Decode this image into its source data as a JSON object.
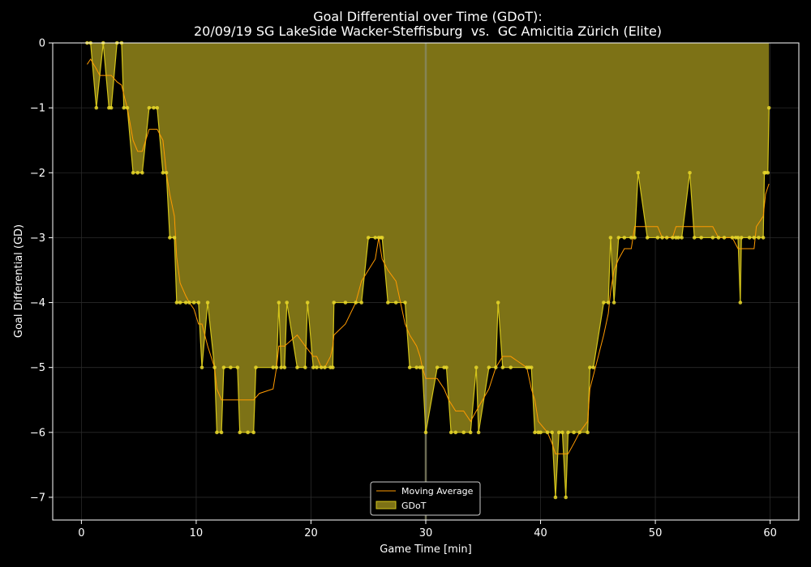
{
  "chart_data": {
    "type": "area",
    "title_line1": "Goal Differential over Time (GDoT):",
    "title_line2": "20/09/19 SG LakeSide Wacker-Steffisburg  vs.  GC Amicitia Zürich (Elite)",
    "xlabel": "Game Time [min]",
    "ylabel": "Goal Differential (GD)",
    "xlim": [
      -2.5,
      62.5
    ],
    "ylim": [
      -7.35,
      0
    ],
    "xticks": [
      0,
      10,
      20,
      30,
      40,
      50,
      60
    ],
    "yticks": [
      0,
      -1,
      -2,
      -3,
      -4,
      -5,
      -6,
      -7
    ],
    "xtick_labels": [
      "0",
      "10",
      "20",
      "30",
      "40",
      "50",
      "60"
    ],
    "ytick_labels": [
      "0",
      "−1",
      "−2",
      "−3",
      "−4",
      "−5",
      "−6",
      "−7"
    ],
    "grid": true,
    "vertical_marker_x": 30,
    "legend": {
      "position": "lower center",
      "entries": [
        "Moving Average",
        "GDoT"
      ]
    },
    "colors": {
      "background": "#000000",
      "area_fill": "#7d7216",
      "gdot_line": "#d4c41a",
      "marker": "#e6d62a",
      "moving_average": "#ff9a00",
      "marker_line": "#8a8a6a"
    },
    "gdot_series": {
      "name": "GDoT",
      "points": [
        [
          0.5,
          0
        ],
        [
          0.8,
          0
        ],
        [
          1.3,
          -1
        ],
        [
          1.9,
          0
        ],
        [
          2.4,
          -1
        ],
        [
          2.6,
          -1
        ],
        [
          3.1,
          0
        ],
        [
          3.5,
          0
        ],
        [
          3.7,
          -1
        ],
        [
          4.0,
          -1
        ],
        [
          4.5,
          -2
        ],
        [
          4.9,
          -2
        ],
        [
          5.3,
          -2
        ],
        [
          5.9,
          -1
        ],
        [
          6.3,
          -1
        ],
        [
          6.6,
          -1
        ],
        [
          7.1,
          -2
        ],
        [
          7.4,
          -2
        ],
        [
          7.7,
          -3
        ],
        [
          8.1,
          -3
        ],
        [
          8.3,
          -4
        ],
        [
          8.6,
          -4
        ],
        [
          9.1,
          -4
        ],
        [
          9.4,
          -4
        ],
        [
          9.8,
          -4
        ],
        [
          10.2,
          -4
        ],
        [
          10.5,
          -5
        ],
        [
          11.0,
          -4
        ],
        [
          11.6,
          -5
        ],
        [
          11.8,
          -6
        ],
        [
          12.2,
          -6
        ],
        [
          12.4,
          -5
        ],
        [
          13.0,
          -5
        ],
        [
          13.6,
          -5
        ],
        [
          13.8,
          -6
        ],
        [
          14.5,
          -6
        ],
        [
          15.0,
          -6
        ],
        [
          15.2,
          -5
        ],
        [
          16.7,
          -5
        ],
        [
          17.0,
          -5
        ],
        [
          17.2,
          -4
        ],
        [
          17.4,
          -5
        ],
        [
          17.7,
          -5
        ],
        [
          17.9,
          -4
        ],
        [
          18.8,
          -5
        ],
        [
          19.5,
          -5
        ],
        [
          19.7,
          -4
        ],
        [
          20.2,
          -5
        ],
        [
          20.5,
          -5
        ],
        [
          20.9,
          -5
        ],
        [
          21.2,
          -5
        ],
        [
          21.7,
          -5
        ],
        [
          21.9,
          -5
        ],
        [
          22.0,
          -4
        ],
        [
          23.0,
          -4
        ],
        [
          23.9,
          -4
        ],
        [
          24.4,
          -4
        ],
        [
          25.0,
          -3
        ],
        [
          25.6,
          -3
        ],
        [
          25.9,
          -3
        ],
        [
          26.1,
          -3
        ],
        [
          26.2,
          -3
        ],
        [
          26.7,
          -4
        ],
        [
          27.4,
          -4
        ],
        [
          28.2,
          -4
        ],
        [
          28.6,
          -5
        ],
        [
          29.2,
          -5
        ],
        [
          29.5,
          -5
        ],
        [
          29.7,
          -5
        ],
        [
          30.0,
          -6
        ],
        [
          31.0,
          -5
        ],
        [
          31.6,
          -5
        ],
        [
          31.8,
          -5
        ],
        [
          32.2,
          -6
        ],
        [
          32.6,
          -6
        ],
        [
          33.3,
          -6
        ],
        [
          33.9,
          -6
        ],
        [
          34.4,
          -5
        ],
        [
          34.6,
          -6
        ],
        [
          35.5,
          -5
        ],
        [
          36.1,
          -5
        ],
        [
          36.3,
          -4
        ],
        [
          36.7,
          -5
        ],
        [
          37.4,
          -5
        ],
        [
          38.8,
          -5
        ],
        [
          39.0,
          -5
        ],
        [
          39.2,
          -5
        ],
        [
          39.5,
          -6
        ],
        [
          39.8,
          -6
        ],
        [
          40.0,
          -6
        ],
        [
          40.6,
          -6
        ],
        [
          41.0,
          -6
        ],
        [
          41.3,
          -7
        ],
        [
          41.6,
          -6
        ],
        [
          41.9,
          -6
        ],
        [
          42.2,
          -7
        ],
        [
          42.4,
          -6
        ],
        [
          42.9,
          -6
        ],
        [
          43.4,
          -6
        ],
        [
          44.1,
          -6
        ],
        [
          44.3,
          -5
        ],
        [
          44.6,
          -5
        ],
        [
          45.5,
          -4
        ],
        [
          45.9,
          -4
        ],
        [
          46.1,
          -3
        ],
        [
          46.4,
          -4
        ],
        [
          46.8,
          -3
        ],
        [
          47.3,
          -3
        ],
        [
          47.9,
          -3
        ],
        [
          48.2,
          -3
        ],
        [
          48.5,
          -2
        ],
        [
          49.3,
          -3
        ],
        [
          50.2,
          -3
        ],
        [
          50.6,
          -3
        ],
        [
          51.0,
          -3
        ],
        [
          51.5,
          -3
        ],
        [
          51.8,
          -3
        ],
        [
          52.0,
          -3
        ],
        [
          52.3,
          -3
        ],
        [
          53.0,
          -2
        ],
        [
          53.4,
          -3
        ],
        [
          54.0,
          -3
        ],
        [
          55.0,
          -3
        ],
        [
          55.5,
          -3
        ],
        [
          56.0,
          -3
        ],
        [
          56.7,
          -3
        ],
        [
          57.0,
          -3
        ],
        [
          57.2,
          -3
        ],
        [
          57.4,
          -4
        ],
        [
          57.5,
          -3
        ],
        [
          58.2,
          -3
        ],
        [
          58.6,
          -3
        ],
        [
          59.0,
          -3
        ],
        [
          59.4,
          -3
        ],
        [
          59.5,
          -2
        ],
        [
          59.6,
          -2
        ],
        [
          59.8,
          -2
        ],
        [
          59.9,
          -1
        ]
      ]
    },
    "moving_average_series": {
      "name": "Moving Average",
      "points": [
        [
          0.5,
          -0.33
        ],
        [
          0.8,
          -0.25
        ],
        [
          1.3,
          -0.4
        ],
        [
          1.6,
          -0.5
        ],
        [
          2.4,
          -0.5
        ],
        [
          2.6,
          -0.5
        ],
        [
          3.1,
          -0.6
        ],
        [
          3.5,
          -0.65
        ],
        [
          3.7,
          -0.8
        ],
        [
          4.0,
          -1.0
        ],
        [
          4.5,
          -1.5
        ],
        [
          4.9,
          -1.67
        ],
        [
          5.3,
          -1.67
        ],
        [
          5.9,
          -1.33
        ],
        [
          6.3,
          -1.33
        ],
        [
          6.6,
          -1.33
        ],
        [
          7.1,
          -1.5
        ],
        [
          7.4,
          -2.0
        ],
        [
          7.7,
          -2.33
        ],
        [
          8.1,
          -2.67
        ],
        [
          8.3,
          -3.3
        ],
        [
          8.6,
          -3.7
        ],
        [
          9.1,
          -3.9
        ],
        [
          9.4,
          -4.0
        ],
        [
          9.8,
          -4.1
        ],
        [
          10.2,
          -4.33
        ],
        [
          10.5,
          -4.33
        ],
        [
          11.0,
          -4.67
        ],
        [
          11.6,
          -5.0
        ],
        [
          11.8,
          -5.33
        ],
        [
          12.2,
          -5.5
        ],
        [
          13.0,
          -5.5
        ],
        [
          13.6,
          -5.5
        ],
        [
          14.5,
          -5.5
        ],
        [
          15.0,
          -5.5
        ],
        [
          15.5,
          -5.4
        ],
        [
          16.7,
          -5.33
        ],
        [
          17.0,
          -5.0
        ],
        [
          17.2,
          -4.67
        ],
        [
          17.4,
          -4.67
        ],
        [
          17.7,
          -4.67
        ],
        [
          18.8,
          -4.5
        ],
        [
          19.5,
          -4.67
        ],
        [
          20.2,
          -4.83
        ],
        [
          20.5,
          -4.83
        ],
        [
          20.9,
          -5.0
        ],
        [
          21.2,
          -5.0
        ],
        [
          21.7,
          -4.83
        ],
        [
          21.9,
          -4.67
        ],
        [
          22.0,
          -4.5
        ],
        [
          23.0,
          -4.33
        ],
        [
          23.9,
          -4.0
        ],
        [
          24.4,
          -3.67
        ],
        [
          25.0,
          -3.5
        ],
        [
          25.6,
          -3.33
        ],
        [
          25.9,
          -3.0
        ],
        [
          26.2,
          -3.33
        ],
        [
          26.7,
          -3.5
        ],
        [
          27.4,
          -3.67
        ],
        [
          28.2,
          -4.33
        ],
        [
          28.6,
          -4.5
        ],
        [
          29.2,
          -4.67
        ],
        [
          29.5,
          -4.83
        ],
        [
          29.7,
          -5.0
        ],
        [
          30.0,
          -5.17
        ],
        [
          31.0,
          -5.17
        ],
        [
          31.6,
          -5.33
        ],
        [
          32.0,
          -5.5
        ],
        [
          32.6,
          -5.67
        ],
        [
          33.3,
          -5.67
        ],
        [
          33.9,
          -5.83
        ],
        [
          34.4,
          -5.67
        ],
        [
          35.5,
          -5.33
        ],
        [
          36.1,
          -5.0
        ],
        [
          36.7,
          -4.83
        ],
        [
          37.4,
          -4.83
        ],
        [
          38.8,
          -5.0
        ],
        [
          39.2,
          -5.33
        ],
        [
          39.5,
          -5.5
        ],
        [
          39.8,
          -5.83
        ],
        [
          40.6,
          -6.0
        ],
        [
          41.0,
          -6.17
        ],
        [
          41.3,
          -6.33
        ],
        [
          41.6,
          -6.33
        ],
        [
          42.4,
          -6.33
        ],
        [
          42.9,
          -6.17
        ],
        [
          43.4,
          -6.0
        ],
        [
          44.1,
          -5.83
        ],
        [
          44.3,
          -5.33
        ],
        [
          45.5,
          -4.5
        ],
        [
          45.9,
          -4.17
        ],
        [
          46.1,
          -3.83
        ],
        [
          46.4,
          -3.5
        ],
        [
          46.8,
          -3.33
        ],
        [
          47.3,
          -3.17
        ],
        [
          47.9,
          -3.17
        ],
        [
          48.2,
          -2.83
        ],
        [
          48.5,
          -2.83
        ],
        [
          49.3,
          -2.83
        ],
        [
          50.2,
          -2.83
        ],
        [
          50.6,
          -3.0
        ],
        [
          51.0,
          -3.0
        ],
        [
          51.5,
          -3.0
        ],
        [
          51.8,
          -2.83
        ],
        [
          53.0,
          -2.83
        ],
        [
          55.0,
          -2.83
        ],
        [
          55.5,
          -3.0
        ],
        [
          56.7,
          -3.0
        ],
        [
          57.2,
          -3.17
        ],
        [
          58.6,
          -3.17
        ],
        [
          58.8,
          -2.83
        ],
        [
          59.4,
          -2.67
        ],
        [
          59.6,
          -2.33
        ],
        [
          59.9,
          -2.17
        ]
      ]
    }
  }
}
